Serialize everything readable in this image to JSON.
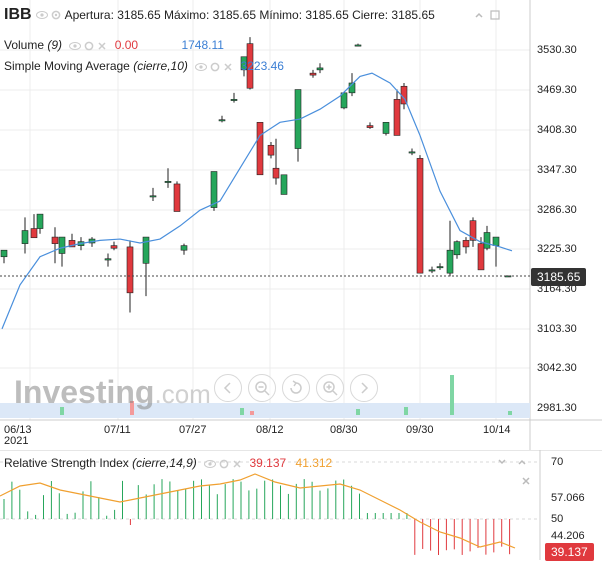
{
  "header": {
    "symbol": "IBB",
    "ohlc": "Apertura: 3185.65 Máximo: 3185.65 Mínimo: 3185.65 Cierre: 3185.65"
  },
  "indicators": {
    "volume": {
      "name": "Volume",
      "param": "(9)",
      "value_a": "0.00",
      "value_b": "1748.11"
    },
    "sma": {
      "name": "Simple Moving Average",
      "param": "(cierre,10)",
      "value": "3223.46"
    },
    "rsi": {
      "name": "Relative Strength Index",
      "param": "(cierre,14,9)",
      "value_a": "39.137",
      "value_b": "41.312"
    }
  },
  "price_axis": [
    "3530.30",
    "3469.30",
    "3408.30",
    "3347.30",
    "3286.30",
    "3225.30",
    "3164.30",
    "3103.30",
    "3042.30",
    "2981.30"
  ],
  "current_price": "3185.65",
  "date_axis": [
    "06/13",
    "07/11",
    "07/27",
    "08/12",
    "08/30",
    "09/30",
    "10/14"
  ],
  "year_label": "2021",
  "rsi_axis": [
    "70",
    "57.066",
    "50",
    "44.206"
  ],
  "rsi_current": "39.137",
  "watermark": {
    "brand": "Investing",
    "suffix": ".com"
  },
  "colors": {
    "up": "#26a65b",
    "down": "#e0393e",
    "sma": "#4a8fdc",
    "rsi_signal": "#f0a030",
    "grid": "#ececec"
  },
  "icons": [
    "eye-icon",
    "settings-icon",
    "close-icon",
    "nav-arrow-left-icon",
    "zoom-out-icon",
    "reset-icon",
    "zoom-in-icon",
    "nav-arrow-right-icon",
    "chevron-down-icon",
    "collapse-icon",
    "expand-icon"
  ]
}
